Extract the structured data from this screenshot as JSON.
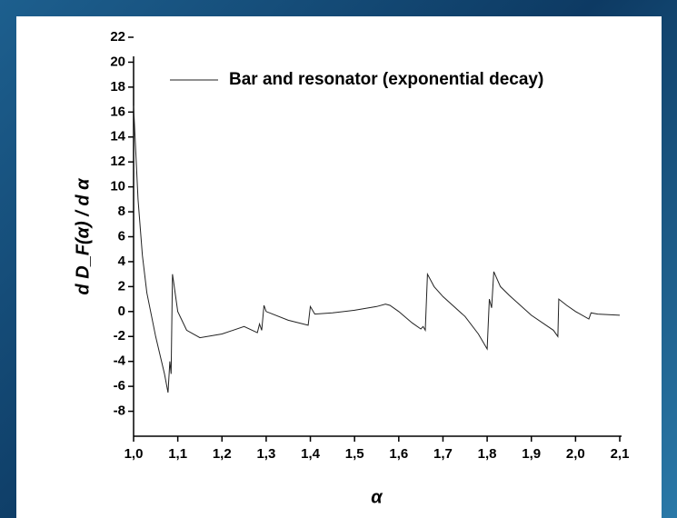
{
  "chart_data": {
    "type": "line",
    "xlabel": "α",
    "ylabel": "d D_F(α) / d α",
    "xlim": [
      1.0,
      2.1
    ],
    "ylim": [
      -10,
      22
    ],
    "xticks": [
      {
        "value": 1.0,
        "label": "1,0"
      },
      {
        "value": 1.1,
        "label": "1,1"
      },
      {
        "value": 1.2,
        "label": "1,2"
      },
      {
        "value": 1.3,
        "label": "1,3"
      },
      {
        "value": 1.4,
        "label": "1,4"
      },
      {
        "value": 1.5,
        "label": "1,5"
      },
      {
        "value": 1.6,
        "label": "1,6"
      },
      {
        "value": 1.7,
        "label": "1,7"
      },
      {
        "value": 1.8,
        "label": "1,8"
      },
      {
        "value": 1.9,
        "label": "1,9"
      },
      {
        "value": 2.0,
        "label": "2,0"
      },
      {
        "value": 2.1,
        "label": "2,1"
      }
    ],
    "yticks": [
      -8,
      -6,
      -4,
      -2,
      0,
      2,
      4,
      6,
      8,
      10,
      12,
      14,
      16,
      18,
      20,
      22
    ],
    "legend": "upper-right",
    "series": [
      {
        "name": "Bar and resonator (exponential decay)",
        "color": "#222222",
        "x": [
          1.0,
          1.01,
          1.02,
          1.03,
          1.05,
          1.07,
          1.078,
          1.082,
          1.085,
          1.088,
          1.09,
          1.1,
          1.12,
          1.15,
          1.2,
          1.25,
          1.28,
          1.285,
          1.29,
          1.295,
          1.3,
          1.35,
          1.395,
          1.4,
          1.41,
          1.45,
          1.5,
          1.55,
          1.57,
          1.58,
          1.6,
          1.63,
          1.65,
          1.655,
          1.66,
          1.665,
          1.68,
          1.7,
          1.75,
          1.78,
          1.8,
          1.805,
          1.81,
          1.815,
          1.83,
          1.85,
          1.9,
          1.95,
          1.96,
          1.962,
          1.98,
          2.0,
          2.03,
          2.035,
          2.05,
          2.1
        ],
        "values": [
          16.5,
          9,
          4.5,
          1.5,
          -2,
          -5,
          -6.5,
          -4,
          -5,
          3,
          2.5,
          0,
          -1.5,
          -2.1,
          -1.8,
          -1.2,
          -1.7,
          -1,
          -1.5,
          0.5,
          0,
          -0.7,
          -1.1,
          0.4,
          -0.2,
          -0.1,
          0.1,
          0.4,
          0.6,
          0.5,
          0,
          -0.9,
          -1.4,
          -1.2,
          -1.5,
          3,
          2,
          1.2,
          -0.4,
          -1.8,
          -3,
          1,
          0.3,
          3.2,
          2,
          1.3,
          -0.3,
          -1.5,
          -2,
          1,
          0.5,
          0,
          -0.6,
          -0.1,
          -0.2,
          -0.3
        ]
      }
    ]
  }
}
